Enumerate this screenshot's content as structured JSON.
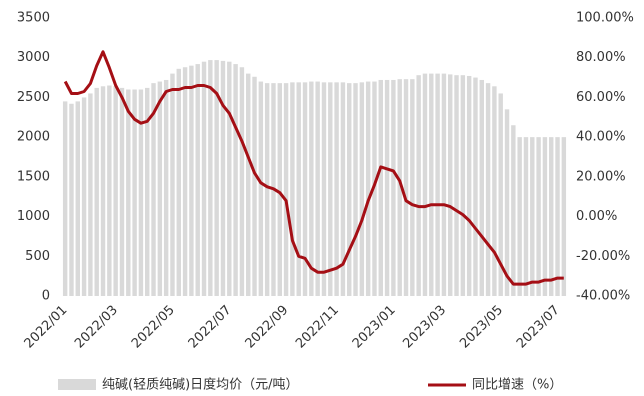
{
  "chart_data": {
    "type": "bar",
    "categories": [
      "2022/01",
      null,
      null,
      null,
      null,
      null,
      null,
      null,
      "2022/03",
      null,
      null,
      null,
      null,
      null,
      null,
      null,
      null,
      "2022/05",
      null,
      null,
      null,
      null,
      null,
      null,
      null,
      null,
      "2022/07",
      null,
      null,
      null,
      null,
      null,
      null,
      null,
      null,
      "2022/09",
      null,
      null,
      null,
      null,
      null,
      null,
      null,
      "2022/11",
      null,
      null,
      null,
      null,
      null,
      null,
      null,
      null,
      "2023/01",
      null,
      null,
      null,
      null,
      null,
      null,
      null,
      "2023/03",
      null,
      null,
      null,
      null,
      null,
      null,
      null,
      null,
      "2023/05",
      null,
      null,
      null,
      null,
      null,
      null,
      null,
      null,
      "2023/07",
      null
    ],
    "series": [
      {
        "name": "纯碱(轻质纯碱)日度均价（元/吨）",
        "type": "bar",
        "color": "#d9d9d9",
        "values": [
          2450,
          2420,
          2450,
          2500,
          2550,
          2620,
          2640,
          2650,
          2640,
          2620,
          2600,
          2600,
          2600,
          2620,
          2680,
          2700,
          2720,
          2800,
          2860,
          2880,
          2900,
          2920,
          2950,
          2970,
          2970,
          2960,
          2950,
          2920,
          2880,
          2800,
          2760,
          2700,
          2680,
          2680,
          2680,
          2680,
          2690,
          2690,
          2690,
          2700,
          2700,
          2690,
          2690,
          2690,
          2690,
          2680,
          2680,
          2690,
          2700,
          2700,
          2720,
          2720,
          2720,
          2730,
          2730,
          2730,
          2780,
          2800,
          2800,
          2800,
          2800,
          2790,
          2780,
          2780,
          2770,
          2750,
          2720,
          2680,
          2640,
          2550,
          2350,
          2150,
          2000,
          2000,
          2000,
          2000,
          2000,
          2000,
          2000,
          2000
        ]
      },
      {
        "name": "同比增速（%）",
        "type": "line",
        "color": "#a50f15",
        "axis": "y2",
        "values": [
          68,
          62,
          62,
          63,
          67,
          76,
          83,
          75,
          66,
          60,
          53,
          49,
          47,
          48,
          52,
          58,
          63,
          64,
          64,
          65,
          65,
          66,
          66,
          65,
          62,
          56,
          52,
          45,
          38,
          30,
          22,
          17,
          15,
          14,
          12,
          8,
          -12,
          -20,
          -21,
          -26,
          -28,
          -28,
          -27,
          -26,
          -24,
          -17,
          -10,
          -2,
          8,
          16,
          25,
          24,
          23,
          18,
          8,
          6,
          5,
          5,
          6,
          6,
          6,
          5,
          3,
          1,
          -2,
          -6,
          -10,
          -14,
          -18,
          -24,
          -30,
          -34,
          -34,
          -34,
          -33,
          -33,
          -32,
          -32,
          -31,
          -31
        ]
      }
    ],
    "ylim": [
      0,
      3500
    ],
    "yticks": [
      0,
      500,
      1000,
      1500,
      2000,
      2500,
      3000,
      3500
    ],
    "y2lim": [
      -40,
      100
    ],
    "y2ticks": [
      {
        "value": -40,
        "label": "-40.00%"
      },
      {
        "value": -20,
        "label": "-20.00%"
      },
      {
        "value": 0,
        "label": "0.00%"
      },
      {
        "value": 20,
        "label": "20.00%"
      },
      {
        "value": 40,
        "label": "40.00%"
      },
      {
        "value": 60,
        "label": "60.00%"
      },
      {
        "value": 80,
        "label": "80.00%"
      },
      {
        "value": 100,
        "label": "100.00%"
      }
    ],
    "grid": false,
    "legend": "bottom"
  }
}
